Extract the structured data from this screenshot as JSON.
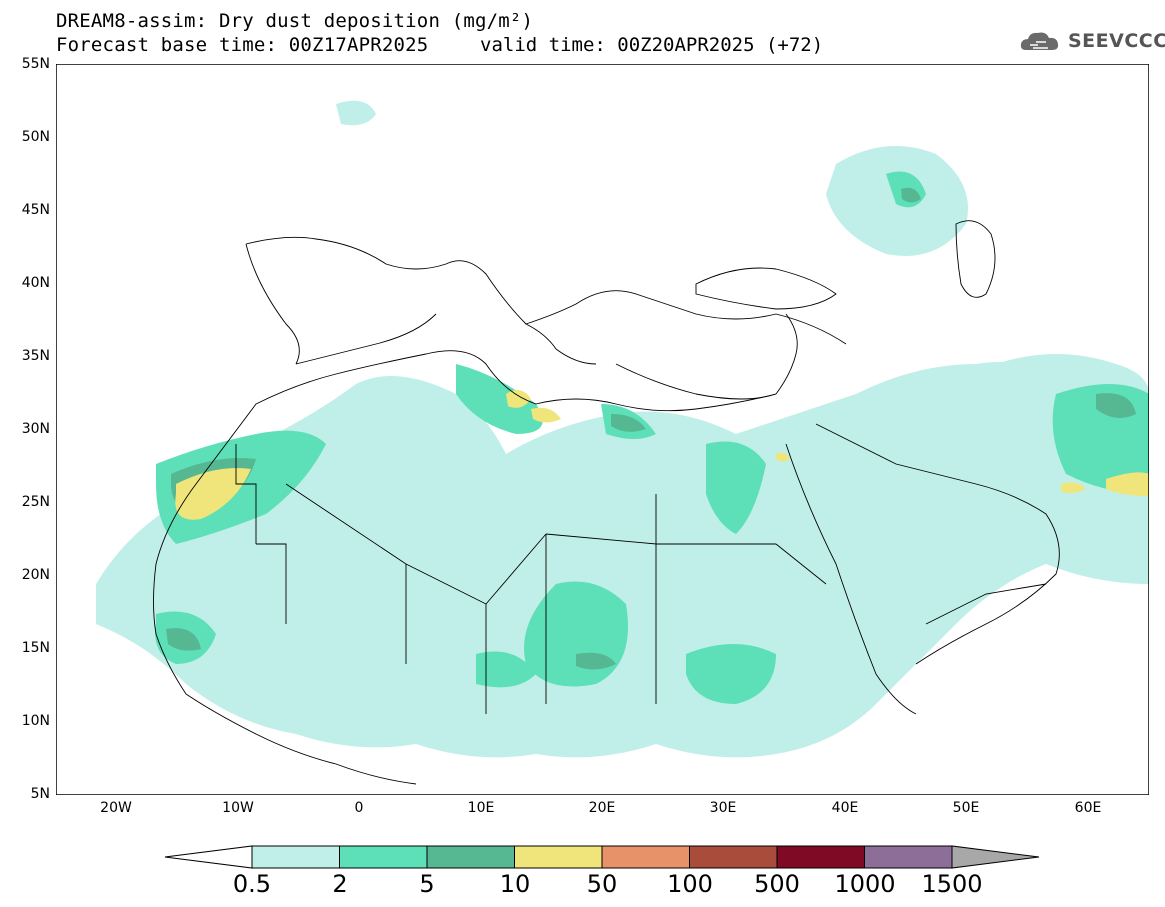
{
  "header": {
    "title_line1": "DREAM8-assim: Dry dust deposition (mg/m²)",
    "title_line2": "Forecast base time: 00Z17APR2025",
    "valid_time": "valid time: 00Z20APR2025 (+72)",
    "logo_text": "SEEVCCC",
    "logo_icon": "cloud-logo-icon"
  },
  "map": {
    "lat_labels": [
      "55N",
      "50N",
      "45N",
      "40N",
      "35N",
      "30N",
      "25N",
      "20N",
      "15N",
      "10N",
      "5N"
    ],
    "lon_labels": [
      "20W",
      "10W",
      "0",
      "10E",
      "20E",
      "30E",
      "40E",
      "50E",
      "60E"
    ],
    "lat_range": [
      5,
      55
    ],
    "lon_range": [
      -25,
      65
    ],
    "colors": {
      "land_border": "#000000",
      "background": "#ffffff"
    }
  },
  "legend": {
    "labels": [
      "0.5",
      "2",
      "5",
      "10",
      "50",
      "100",
      "500",
      "1000",
      "1500"
    ],
    "colors": [
      "#ffffff",
      "#c0efe9",
      "#5de0b8",
      "#56b892",
      "#f0e57a",
      "#e8926a",
      "#aa4c3c",
      "#7e0a26",
      "#8c6e99",
      "#a8a8a8"
    ]
  }
}
